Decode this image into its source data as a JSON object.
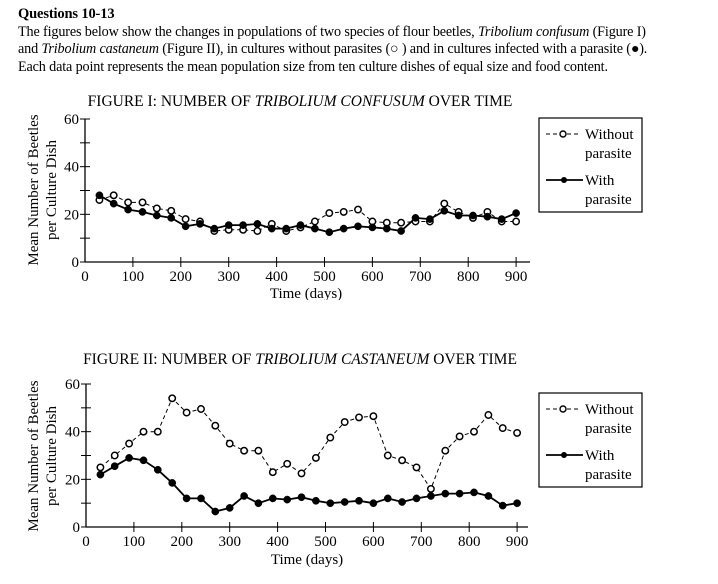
{
  "header": {
    "title": "Questions 10-13",
    "line1_a": "The figures below show the changes in populations of two species of flour beetles, ",
    "species1": "Tribolium confusum",
    "line1_b": " (Figure I)",
    "line2_a": "and ",
    "species2": "Tribolium castaneum",
    "line2_b": " (Figure II), in cultures without parasites (○ ) and in cultures infected with a parasite (●).",
    "line3": "Each data point represents the mean population size from ten culture dishes of equal size and food content."
  },
  "chart_data": [
    {
      "type": "line",
      "title_prefix": "FIGURE I:  NUMBER OF ",
      "title_species": "TRIBOLIUM CONFUSUM",
      "title_suffix": " OVER TIME",
      "xlabel": "Time (days)",
      "ylabel_line1": "Mean Number of Beetles",
      "ylabel_line2": "per Culture Dish",
      "xlim": [
        0,
        930
      ],
      "ylim": [
        0,
        60
      ],
      "xticks": [
        0,
        100,
        200,
        300,
        400,
        500,
        600,
        700,
        800,
        900
      ],
      "yticks": [
        0,
        20,
        40,
        60
      ],
      "yminor": [
        10,
        30,
        50
      ],
      "grid": false,
      "legend_position": "right",
      "x": [
        30,
        60,
        90,
        120,
        150,
        180,
        210,
        240,
        270,
        300,
        330,
        360,
        390,
        420,
        450,
        480,
        510,
        540,
        570,
        600,
        630,
        660,
        690,
        720,
        750,
        780,
        810,
        840,
        870,
        900
      ],
      "series": [
        {
          "name": "Without parasite",
          "legend_line1": "Without",
          "legend_line2": "parasite",
          "style": "dashed-open",
          "values": [
            26,
            28,
            25,
            25,
            22.5,
            21.5,
            18,
            17,
            13,
            13.5,
            13.5,
            13,
            16,
            13,
            14.5,
            17,
            20.5,
            21,
            22,
            17,
            16.5,
            16.5,
            17,
            17,
            24.5,
            21,
            18.5,
            21,
            17,
            17
          ]
        },
        {
          "name": "With parasite",
          "legend_line1": "With",
          "legend_line2": "parasite",
          "style": "solid-filled",
          "values": [
            28,
            24.5,
            22,
            21,
            19.5,
            18.5,
            15,
            16,
            14,
            15.5,
            15.5,
            16,
            14,
            14,
            15.5,
            14,
            12.5,
            14,
            15,
            14.5,
            14,
            13,
            18.5,
            18,
            21.5,
            19.5,
            19.5,
            19,
            18,
            20.5
          ]
        }
      ]
    },
    {
      "type": "line",
      "title_prefix": "FIGURE II:  NUMBER OF ",
      "title_species": "TRIBOLIUM CASTANEUM",
      "title_suffix": " OVER TIME",
      "xlabel": "Time (days)",
      "ylabel_line1": "Mean Number of Beetles",
      "ylabel_line2": "per Culture Dish",
      "xlim": [
        0,
        930
      ],
      "ylim": [
        0,
        60
      ],
      "xticks": [
        0,
        100,
        200,
        300,
        400,
        500,
        600,
        700,
        800,
        900
      ],
      "yticks": [
        0,
        20,
        40,
        60
      ],
      "yminor": [
        10,
        30,
        50
      ],
      "grid": false,
      "legend_position": "right",
      "x": [
        30,
        60,
        90,
        120,
        150,
        180,
        210,
        240,
        270,
        300,
        330,
        360,
        390,
        420,
        450,
        480,
        510,
        540,
        570,
        600,
        630,
        660,
        690,
        720,
        750,
        780,
        810,
        840,
        870,
        900
      ],
      "series": [
        {
          "name": "Without parasite",
          "legend_line1": "Without",
          "legend_line2": "parasite",
          "style": "dashed-open",
          "values": [
            25,
            30,
            35,
            40,
            40,
            54,
            48,
            49.5,
            42.5,
            35,
            32,
            32,
            23,
            26.5,
            22.5,
            29,
            37.5,
            44,
            46,
            46.5,
            30,
            28,
            25,
            16,
            32,
            38,
            40,
            47,
            41.5,
            39.5
          ]
        },
        {
          "name": "With parasite",
          "legend_line1": "With",
          "legend_line2": "parasite",
          "style": "solid-filled",
          "values": [
            22,
            25.5,
            29,
            28,
            24,
            18.5,
            12,
            12,
            6.5,
            8,
            13,
            10,
            12,
            11.5,
            12.5,
            11,
            10,
            10.5,
            11,
            10,
            12,
            10.5,
            12,
            13,
            14,
            14,
            14.5,
            13,
            9,
            10
          ]
        }
      ]
    }
  ]
}
